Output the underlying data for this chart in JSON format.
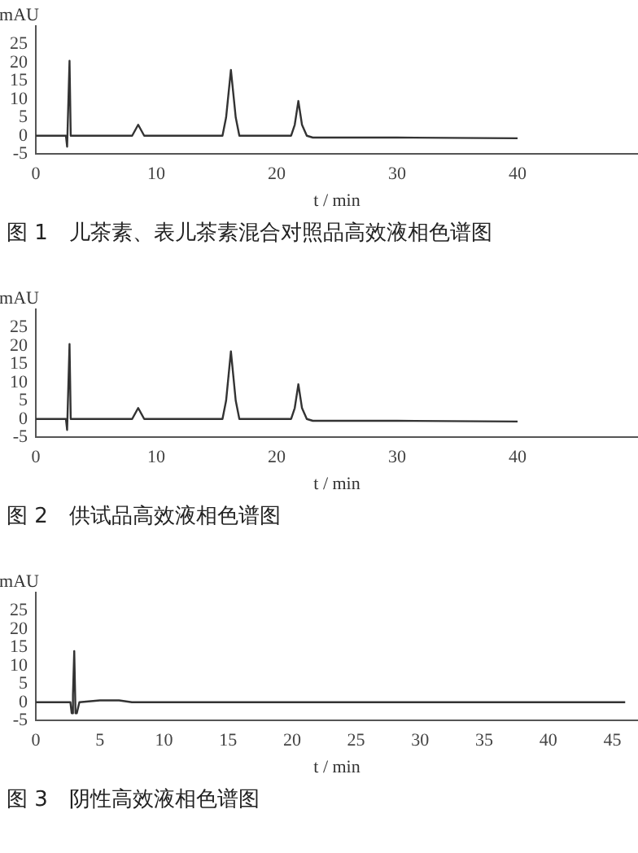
{
  "chart_data": [
    {
      "type": "line",
      "title": "图 1　儿茶素、表儿茶素混合对照品高效液相色谱图",
      "xlabel": "t / min",
      "ylabel": "mAU",
      "xlim": [
        0,
        50
      ],
      "xticks": [
        0,
        10,
        20,
        30,
        40
      ],
      "ylim": [
        -5,
        30
      ],
      "yticks": [
        -5,
        0,
        5,
        10,
        15,
        20,
        25
      ],
      "grid": false,
      "legend": false,
      "marker": "none",
      "line_style": "solid",
      "series": [
        {
          "color": "#333333",
          "x": [
            0,
            2.5,
            2.6,
            2.7,
            2.8,
            2.9,
            3.0,
            8.0,
            8.5,
            9.0,
            15.5,
            15.8,
            16.2,
            16.6,
            16.9,
            21.2,
            21.5,
            21.8,
            22.1,
            22.5,
            23.0,
            30,
            40
          ],
          "values": [
            0,
            0,
            -3,
            -3,
            20.5,
            0,
            0,
            0,
            3,
            0,
            0,
            5,
            18,
            5,
            0,
            0,
            3,
            9.5,
            3,
            0,
            -0.5,
            -0.5,
            -0.7
          ]
        }
      ]
    },
    {
      "type": "line",
      "title": "图 2　供试品高效液相色谱图",
      "xlabel": "t / min",
      "ylabel": "mAU",
      "xlim": [
        0,
        50
      ],
      "xticks": [
        0,
        10,
        20,
        30,
        40
      ],
      "ylim": [
        -5,
        30
      ],
      "yticks": [
        -5,
        0,
        5,
        10,
        15,
        20,
        25
      ],
      "grid": false,
      "legend": false,
      "marker": "none",
      "line_style": "solid",
      "series": [
        {
          "color": "#333333",
          "x": [
            0,
            2.5,
            2.6,
            2.7,
            2.8,
            2.9,
            3.0,
            8.0,
            8.5,
            9.0,
            15.5,
            15.8,
            16.2,
            16.6,
            16.9,
            21.2,
            21.5,
            21.8,
            22.1,
            22.5,
            23.0,
            30,
            40
          ],
          "values": [
            0,
            0,
            -3,
            -3,
            20.5,
            0,
            0,
            0,
            3,
            0,
            0,
            5,
            18.5,
            5,
            0,
            0,
            3,
            9.5,
            3,
            0,
            -0.5,
            -0.5,
            -0.7
          ]
        }
      ]
    },
    {
      "type": "line",
      "title": "图 3　阴性高效液相色谱图",
      "xlabel": "t / min",
      "ylabel": "mAU",
      "xlim": [
        0,
        47
      ],
      "xticks": [
        0,
        5,
        10,
        15,
        20,
        25,
        30,
        35,
        40,
        45
      ],
      "ylim": [
        -5,
        30
      ],
      "yticks": [
        -5,
        0,
        5,
        10,
        15,
        20,
        25
      ],
      "grid": false,
      "legend": false,
      "marker": "none",
      "line_style": "solid",
      "series": [
        {
          "color": "#333333",
          "x": [
            0,
            2.7,
            2.8,
            2.9,
            3.0,
            3.1,
            3.2,
            3.4,
            5,
            6.5,
            7.5,
            20,
            30,
            46
          ],
          "values": [
            0,
            0,
            -3,
            2,
            14,
            -3,
            -3,
            0,
            0.5,
            0.5,
            0,
            0,
            0,
            0
          ]
        }
      ]
    }
  ]
}
